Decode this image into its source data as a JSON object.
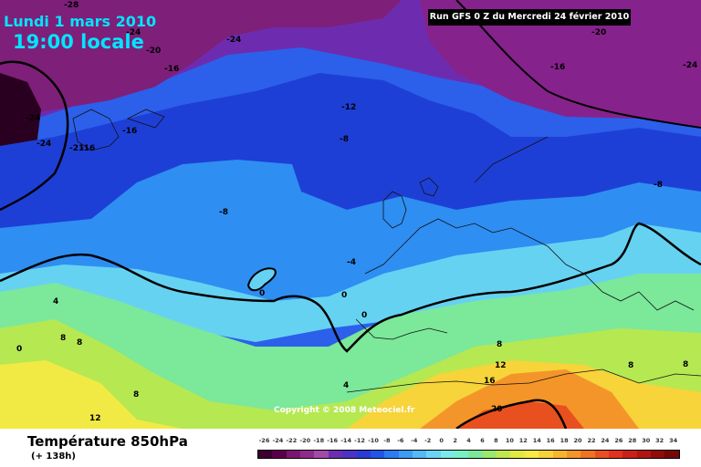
{
  "header": {
    "date": "Lundi 1 mars 2010",
    "time": "19:00 locale",
    "run": "Run GFS 0 Z du Mercredi 24 février 2010"
  },
  "map": {
    "variable": "Température 850hPa",
    "copyright": "Copyright © 2008 Meteociel.fr",
    "isotherm_labels": [
      "-28",
      "-24",
      "-20",
      "-24",
      "-16",
      "-20",
      "-24",
      "-16",
      "-24",
      "-28",
      "-24",
      "-16",
      "-12",
      "-8",
      "-21",
      "-16",
      "-8",
      "-8",
      "-4",
      "0",
      "0",
      "4",
      "0",
      "0",
      "8",
      "8",
      "8",
      "12",
      "4",
      "8",
      "12",
      "16",
      "8",
      "20",
      "8"
    ]
  },
  "legend": {
    "title": "Température 850hPa",
    "subtitle": "(+ 138h)",
    "scale_values": [
      "-26",
      "-24",
      "-22",
      "-20",
      "-18",
      "-16",
      "-14",
      "-12",
      "-10",
      "-8",
      "-6",
      "-4",
      "-2",
      "0",
      "2",
      "4",
      "6",
      "8",
      "10",
      "12",
      "14",
      "16",
      "18",
      "20",
      "22",
      "24",
      "26",
      "28",
      "30",
      "32",
      "34"
    ],
    "scale_colors": [
      "#3c0032",
      "#5a004b",
      "#7a1670",
      "#8e2b8a",
      "#a14aa7",
      "#6a2fb1",
      "#4b33c6",
      "#2a3bd6",
      "#1f55e8",
      "#2c7bf2",
      "#3e9cf6",
      "#55b9f8",
      "#6cd3f6",
      "#7de8e6",
      "#79f0c4",
      "#7ce89a",
      "#9ce86e",
      "#c0e84e",
      "#e0ea42",
      "#f7ea42",
      "#f8d23a",
      "#f7b52e",
      "#f4952a",
      "#ef7324",
      "#e95021",
      "#e0321d",
      "#c92018",
      "#b0160f",
      "#900c0a",
      "#730807"
    ]
  }
}
